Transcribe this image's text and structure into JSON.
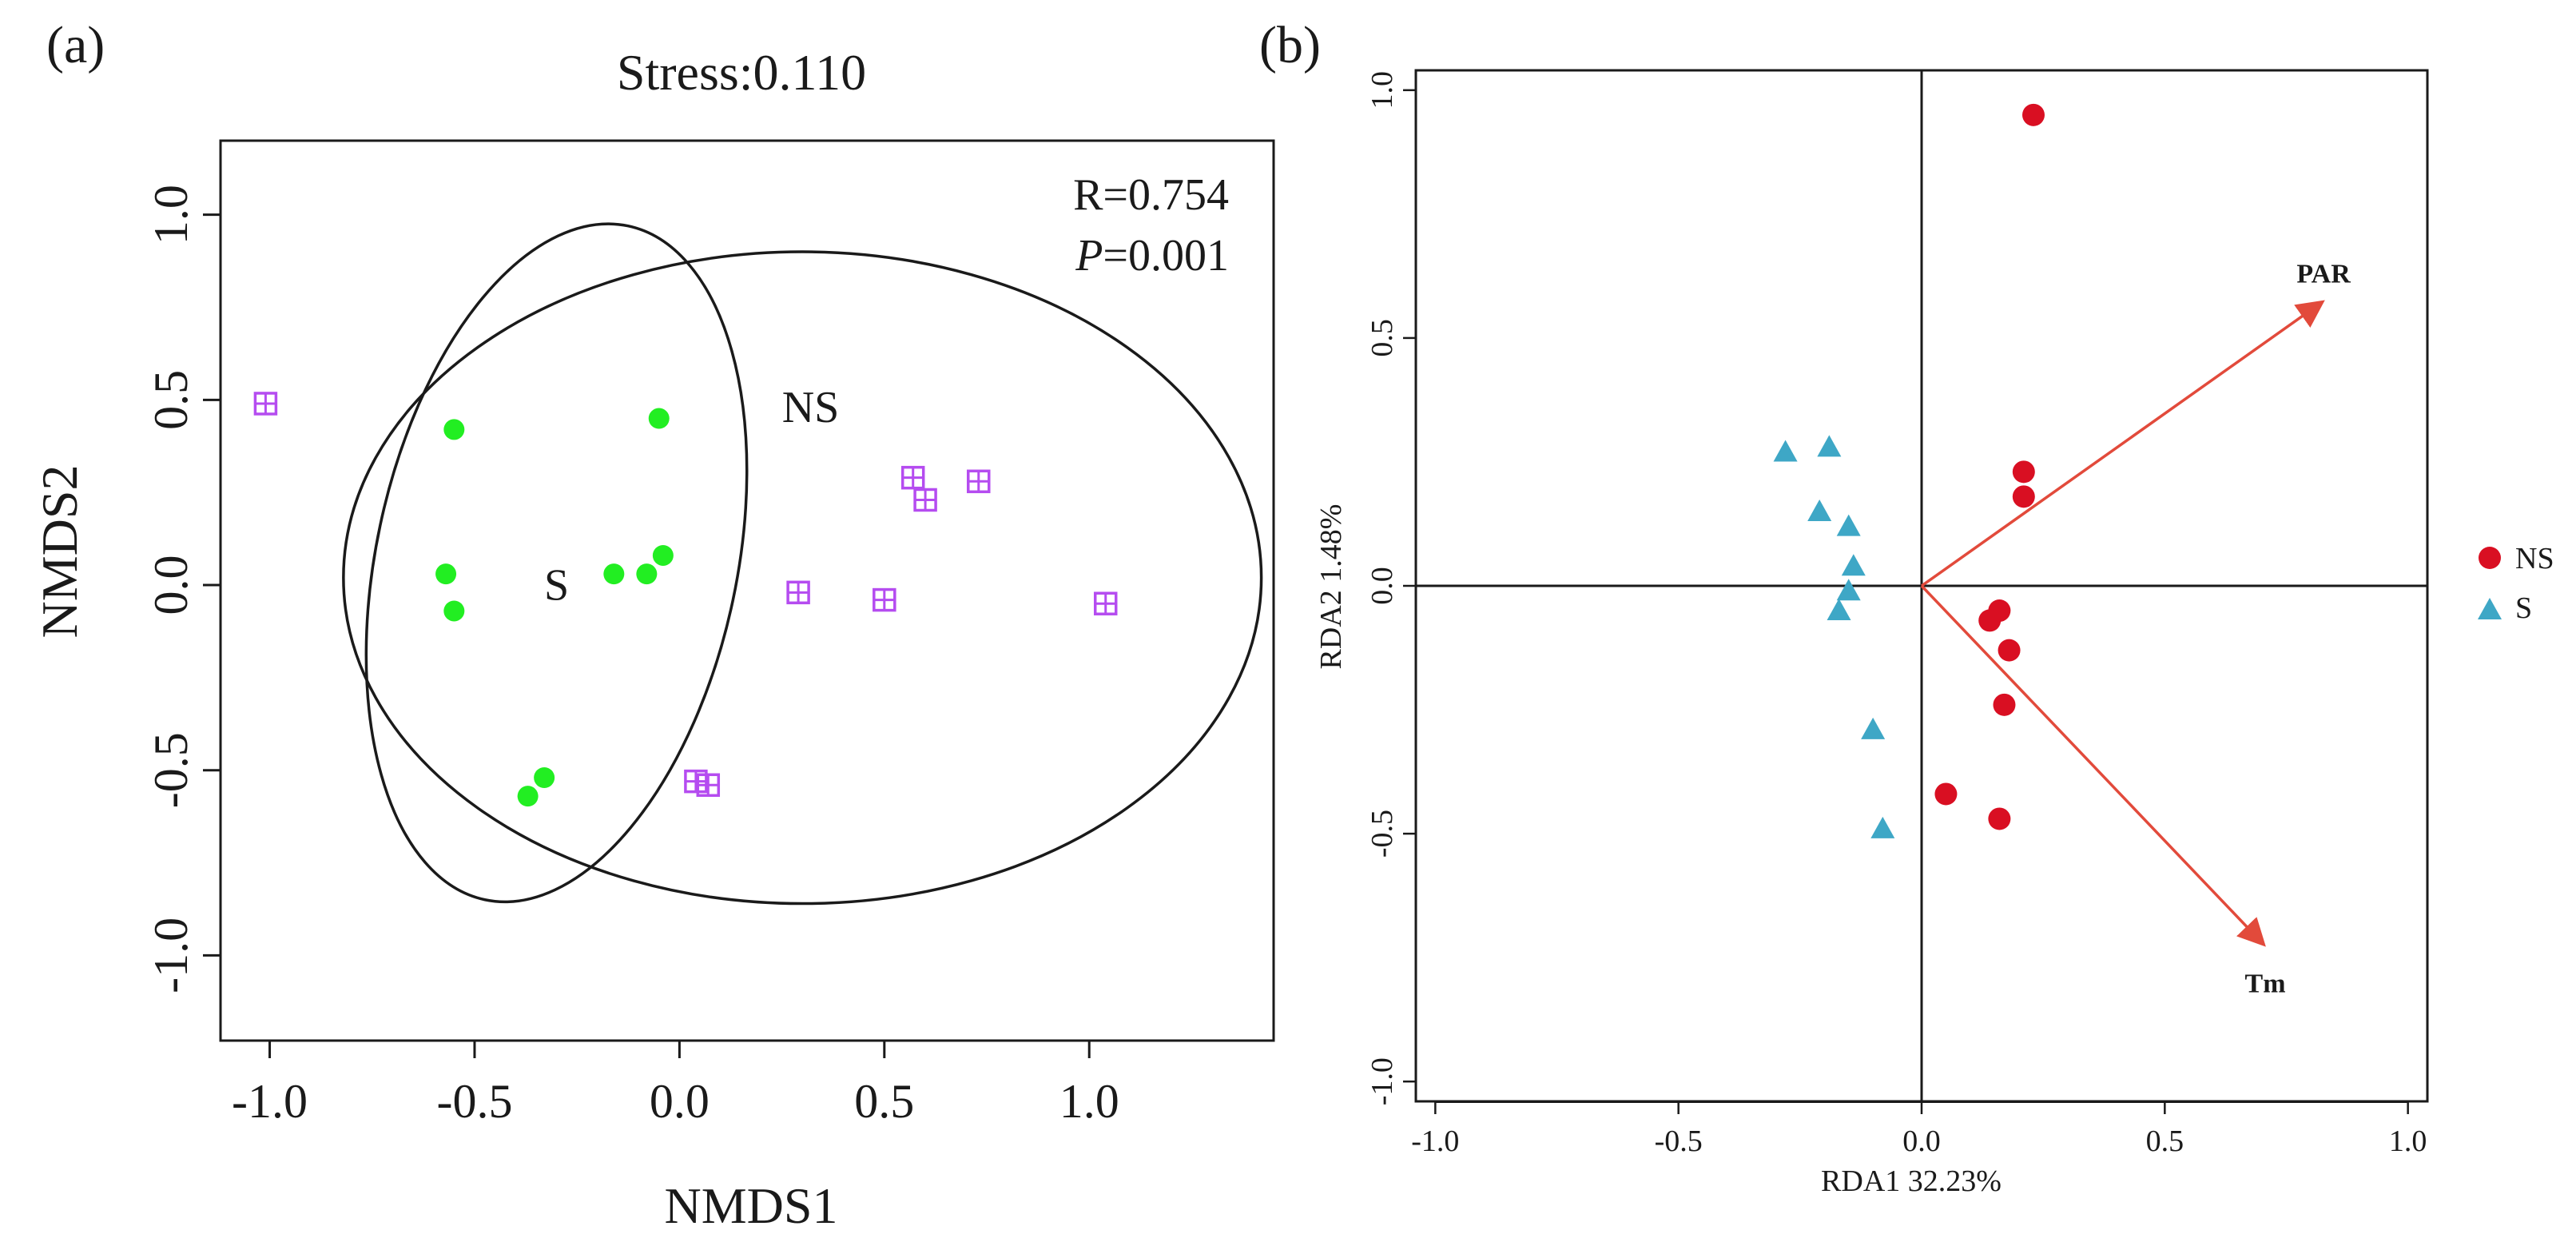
{
  "colors": {
    "ns_points_a": "#b54cf0",
    "s_points_a": "#22ee22",
    "ns_points_b": "#d90f22",
    "s_points_b": "#3ea7c6",
    "arrow": "#e24a3b",
    "axis": "#1a1a1a"
  },
  "chart_data": [
    {
      "type": "scatter",
      "panel_label": "(a)",
      "title": "Stress:0.110",
      "xlabel": "NMDS1",
      "ylabel": "NMDS2",
      "xlim": [
        -1.12,
        1.45
      ],
      "ylim": [
        -1.23,
        1.2
      ],
      "xticks": [
        -1.0,
        -0.5,
        0.0,
        0.5,
        1.0
      ],
      "xtick_labels": [
        "-1.0",
        "-0.5",
        "0.0",
        "0.5",
        "1.0"
      ],
      "yticks": [
        -1.0,
        -0.5,
        0.0,
        0.5,
        1.0
      ],
      "ytick_labels": [
        "-1.0",
        "-0.5",
        "0.0",
        "0.5",
        "1.0"
      ],
      "grid": false,
      "stats": {
        "r_text": "R=0.754",
        "p_symbol": "P",
        "p_value": "=0.001"
      },
      "group_labels": [
        {
          "text": "NS",
          "x": 0.32,
          "y": 0.44
        },
        {
          "text": "S",
          "x": -0.3,
          "y": -0.04
        }
      ],
      "series": [
        {
          "group": "NS",
          "marker": "boxed-plus",
          "points": [
            [
              -1.01,
              0.49
            ],
            [
              0.57,
              0.29
            ],
            [
              0.6,
              0.23
            ],
            [
              0.73,
              0.28
            ],
            [
              0.29,
              -0.02
            ],
            [
              0.5,
              -0.04
            ],
            [
              1.04,
              -0.05
            ],
            [
              0.04,
              -0.53
            ],
            [
              0.07,
              -0.54
            ]
          ]
        },
        {
          "group": "S",
          "marker": "circle",
          "points": [
            [
              -0.55,
              0.42
            ],
            [
              -0.05,
              0.45
            ],
            [
              -0.57,
              0.03
            ],
            [
              -0.55,
              -0.07
            ],
            [
              -0.16,
              0.03
            ],
            [
              -0.08,
              0.03
            ],
            [
              -0.04,
              0.08
            ],
            [
              -0.33,
              -0.52
            ],
            [
              -0.37,
              -0.57
            ]
          ]
        }
      ],
      "ellipses": [
        {
          "group": "NS",
          "center": [
            0.3,
            0.02
          ],
          "radii": [
            1.12,
            0.88
          ]
        },
        {
          "group": "S",
          "center": [
            -0.3,
            0.06
          ],
          "radii": [
            0.44,
            0.93
          ],
          "rotation_deg": 12
        }
      ]
    },
    {
      "type": "scatter",
      "panel_label": "(b)",
      "xlabel": "RDA1 32.23%",
      "ylabel": "RDA2 1.48%",
      "xlim": [
        -1.04,
        1.04
      ],
      "ylim": [
        -1.04,
        1.04
      ],
      "xticks": [
        -1.0,
        -0.5,
        0.0,
        0.5,
        1.0
      ],
      "xtick_labels": [
        "-1.0",
        "-0.5",
        "0.0",
        "0.5",
        "1.0"
      ],
      "yticks": [
        -1.0,
        -0.5,
        0.0,
        0.5,
        1.0
      ],
      "ytick_labels": [
        "-1.0",
        "-0.5",
        "0.0",
        "0.5",
        "1.0"
      ],
      "grid": false,
      "legend_position": "right",
      "legend": [
        {
          "name": "NS",
          "marker": "circle"
        },
        {
          "name": "S",
          "marker": "triangle"
        }
      ],
      "series": [
        {
          "name": "NS",
          "marker": "circle",
          "points": [
            [
              0.23,
              0.95
            ],
            [
              0.21,
              0.23
            ],
            [
              0.21,
              0.18
            ],
            [
              0.16,
              -0.05
            ],
            [
              0.14,
              -0.07
            ],
            [
              0.18,
              -0.13
            ],
            [
              0.17,
              -0.24
            ],
            [
              0.05,
              -0.42
            ],
            [
              0.16,
              -0.47
            ]
          ]
        },
        {
          "name": "S",
          "marker": "triangle",
          "points": [
            [
              -0.28,
              0.27
            ],
            [
              -0.19,
              0.28
            ],
            [
              -0.21,
              0.15
            ],
            [
              -0.15,
              0.12
            ],
            [
              -0.14,
              0.04
            ],
            [
              -0.15,
              -0.01
            ],
            [
              -0.17,
              -0.05
            ],
            [
              -0.1,
              -0.29
            ],
            [
              -0.08,
              -0.49
            ]
          ]
        }
      ],
      "arrows": [
        {
          "label": "PAR",
          "x": 0.82,
          "y": 0.57
        },
        {
          "label": "Tm",
          "x": 0.7,
          "y": -0.72
        }
      ],
      "reference_lines": {
        "x": 0,
        "y": 0
      }
    }
  ]
}
